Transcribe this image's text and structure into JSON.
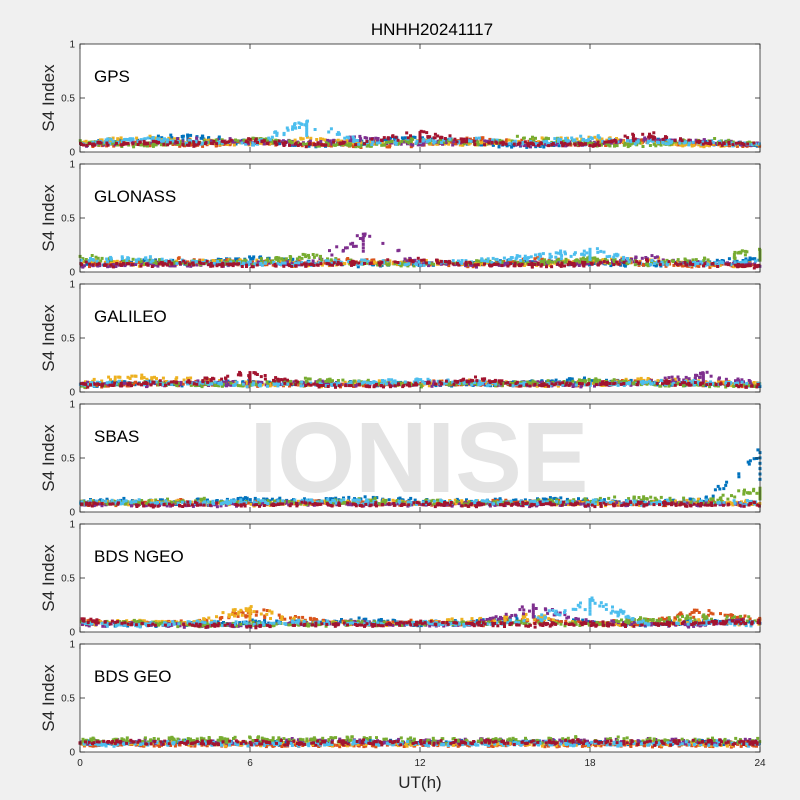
{
  "chart_data": {
    "type": "scatter",
    "title": "HNHH20241117",
    "xlabel": "UT(h)",
    "xlim": [
      0,
      24
    ],
    "xticks": [
      "0",
      "6",
      "12",
      "18",
      "24"
    ],
    "watermark": "IONISE",
    "colors": [
      "#0072BD",
      "#D95319",
      "#EDB120",
      "#7E2F8E",
      "#77AC30",
      "#4DBEEE",
      "#A2142F"
    ],
    "panels": [
      {
        "label": "GPS",
        "ylabel": "S4 Index",
        "ylim": [
          0,
          1
        ],
        "yticks": [
          "0",
          "0.5",
          "1"
        ],
        "series": [
          {
            "values": [
              0.08,
              0.12,
              0.15,
              0.09,
              0.07,
              0.1,
              0.14,
              0.08,
              0.06,
              0.09,
              0.11,
              0.1,
              0.07
            ]
          },
          {
            "values": [
              0.06,
              0.09,
              0.07,
              0.1,
              0.08,
              0.06,
              0.07,
              0.12,
              0.09,
              0.07,
              0.1,
              0.08,
              0.06
            ]
          },
          {
            "values": [
              0.09,
              0.14,
              0.11,
              0.08,
              0.12,
              0.09,
              0.1,
              0.08,
              0.11,
              0.13,
              0.09,
              0.07,
              0.08
            ]
          },
          {
            "values": [
              0.07,
              0.08,
              0.12,
              0.1,
              0.09,
              0.13,
              0.08,
              0.11,
              0.07,
              0.09,
              0.12,
              0.1,
              0.07
            ]
          },
          {
            "values": [
              0.1,
              0.07,
              0.09,
              0.13,
              0.08,
              0.07,
              0.12,
              0.09,
              0.14,
              0.08,
              0.07,
              0.11,
              0.09
            ]
          },
          {
            "values": [
              0.08,
              0.13,
              0.1,
              0.07,
              0.28,
              0.09,
              0.11,
              0.12,
              0.08,
              0.15,
              0.1,
              0.09,
              0.08
            ]
          },
          {
            "values": [
              0.07,
              0.09,
              0.08,
              0.11,
              0.07,
              0.1,
              0.18,
              0.09,
              0.08,
              0.07,
              0.17,
              0.09,
              0.07
            ]
          }
        ]
      },
      {
        "label": "GLONASS",
        "ylabel": "S4 Index",
        "ylim": [
          0,
          1
        ],
        "yticks": [
          "0",
          "0.5",
          "1"
        ],
        "series": [
          {
            "values": [
              0.09,
              0.11,
              0.08,
              0.13,
              0.1,
              0.07,
              0.09,
              0.08,
              0.11,
              0.09,
              0.07,
              0.1,
              0.12
            ]
          },
          {
            "values": [
              0.07,
              0.09,
              0.12,
              0.08,
              0.1,
              0.11,
              0.08,
              0.07,
              0.12,
              0.1,
              0.08,
              0.06,
              0.08
            ]
          },
          {
            "values": [
              0.1,
              0.08,
              0.09,
              0.11,
              0.07,
              0.09,
              0.1,
              0.08,
              0.07,
              0.11,
              0.12,
              0.08,
              0.07
            ]
          },
          {
            "values": [
              0.06,
              0.08,
              0.07,
              0.09,
              0.08,
              0.35,
              0.08,
              0.07,
              0.09,
              0.08,
              0.14,
              0.09,
              0.07
            ]
          },
          {
            "values": [
              0.14,
              0.11,
              0.09,
              0.1,
              0.16,
              0.08,
              0.07,
              0.1,
              0.09,
              0.12,
              0.09,
              0.13,
              0.2
            ]
          },
          {
            "values": [
              0.12,
              0.13,
              0.1,
              0.08,
              0.09,
              0.1,
              0.08,
              0.12,
              0.14,
              0.21,
              0.09,
              0.08,
              0.1
            ]
          },
          {
            "values": [
              0.08,
              0.07,
              0.09,
              0.06,
              0.07,
              0.09,
              0.11,
              0.08,
              0.07,
              0.08,
              0.1,
              0.07,
              0.06
            ]
          }
        ]
      },
      {
        "label": "GALILEO",
        "ylabel": "S4 Index",
        "ylim": [
          0,
          1
        ],
        "yticks": [
          "0",
          "0.5",
          "1"
        ],
        "series": [
          {
            "values": [
              0.07,
              0.09,
              0.08,
              0.1,
              0.07,
              0.09,
              0.08,
              0.07,
              0.1,
              0.12,
              0.09,
              0.08,
              0.07
            ]
          },
          {
            "values": [
              0.06,
              0.08,
              0.09,
              0.07,
              0.08,
              0.07,
              0.09,
              0.08,
              0.07,
              0.09,
              0.1,
              0.08,
              0.07
            ]
          },
          {
            "values": [
              0.09,
              0.15,
              0.12,
              0.08,
              0.07,
              0.09,
              0.08,
              0.1,
              0.07,
              0.08,
              0.12,
              0.09,
              0.08
            ]
          },
          {
            "values": [
              0.08,
              0.07,
              0.09,
              0.08,
              0.1,
              0.07,
              0.08,
              0.09,
              0.08,
              0.07,
              0.09,
              0.17,
              0.08
            ]
          },
          {
            "values": [
              0.06,
              0.09,
              0.07,
              0.08,
              0.12,
              0.1,
              0.07,
              0.08,
              0.09,
              0.11,
              0.08,
              0.07,
              0.06
            ]
          },
          {
            "values": [
              0.08,
              0.1,
              0.09,
              0.07,
              0.08,
              0.09,
              0.11,
              0.09,
              0.08,
              0.07,
              0.1,
              0.09,
              0.08
            ]
          },
          {
            "values": [
              0.07,
              0.08,
              0.1,
              0.18,
              0.07,
              0.06,
              0.08,
              0.12,
              0.07,
              0.08,
              0.09,
              0.08,
              0.06
            ]
          }
        ]
      },
      {
        "label": "SBAS",
        "ylabel": "S4 Index",
        "ylim": [
          0,
          1
        ],
        "yticks": [
          "0",
          "0.5",
          "1"
        ],
        "series": [
          {
            "values": [
              0.1,
              0.11,
              0.1,
              0.12,
              0.11,
              0.13,
              0.11,
              0.1,
              0.12,
              0.11,
              0.1,
              0.11,
              0.55
            ]
          },
          {
            "values": [
              0.08,
              0.09,
              0.1,
              0.09,
              0.1,
              0.09,
              0.08,
              0.09,
              0.1,
              0.09,
              0.08,
              0.09,
              0.08
            ]
          },
          {
            "values": [
              0.09,
              0.1,
              0.09,
              0.08,
              0.09,
              0.1,
              0.09,
              0.1,
              0.09,
              0.08,
              0.09,
              0.1,
              0.09
            ]
          },
          {
            "values": [
              0.07,
              0.08,
              0.07,
              0.08,
              0.09,
              0.08,
              0.07,
              0.08,
              0.07,
              0.08,
              0.09,
              0.08,
              0.07
            ]
          },
          {
            "values": [
              0.1,
              0.09,
              0.11,
              0.1,
              0.09,
              0.12,
              0.1,
              0.09,
              0.1,
              0.11,
              0.14,
              0.1,
              0.22
            ]
          },
          {
            "values": [
              0.09,
              0.1,
              0.09,
              0.1,
              0.11,
              0.1,
              0.09,
              0.1,
              0.09,
              0.1,
              0.09,
              0.1,
              0.09
            ]
          },
          {
            "values": [
              0.08,
              0.07,
              0.08,
              0.07,
              0.08,
              0.07,
              0.08,
              0.07,
              0.08,
              0.07,
              0.08,
              0.07,
              0.08
            ]
          }
        ]
      },
      {
        "label": "BDS NGEO",
        "ylabel": "S4 Index",
        "ylim": [
          0,
          1
        ],
        "yticks": [
          "0",
          "0.5",
          "1"
        ],
        "series": [
          {
            "values": [
              0.09,
              0.07,
              0.08,
              0.1,
              0.09,
              0.12,
              0.08,
              0.1,
              0.14,
              0.09,
              0.08,
              0.1,
              0.09
            ]
          },
          {
            "values": [
              0.11,
              0.08,
              0.09,
              0.2,
              0.12,
              0.09,
              0.1,
              0.08,
              0.12,
              0.09,
              0.1,
              0.2,
              0.12
            ]
          },
          {
            "values": [
              0.08,
              0.1,
              0.09,
              0.22,
              0.1,
              0.08,
              0.09,
              0.12,
              0.15,
              0.08,
              0.09,
              0.1,
              0.08
            ]
          },
          {
            "values": [
              0.07,
              0.08,
              0.06,
              0.07,
              0.08,
              0.09,
              0.07,
              0.08,
              0.25,
              0.1,
              0.08,
              0.07,
              0.15
            ]
          },
          {
            "values": [
              0.1,
              0.09,
              0.07,
              0.08,
              0.07,
              0.09,
              0.08,
              0.1,
              0.09,
              0.08,
              0.12,
              0.14,
              0.12
            ]
          },
          {
            "values": [
              0.08,
              0.07,
              0.09,
              0.08,
              0.1,
              0.08,
              0.09,
              0.07,
              0.12,
              0.3,
              0.08,
              0.09,
              0.08
            ]
          },
          {
            "values": [
              0.12,
              0.08,
              0.07,
              0.06,
              0.08,
              0.07,
              0.09,
              0.08,
              0.07,
              0.08,
              0.07,
              0.09,
              0.1
            ]
          }
        ]
      },
      {
        "label": "BDS GEO",
        "ylabel": "S4 Index",
        "ylim": [
          0,
          1
        ],
        "yticks": [
          "0",
          "0.5",
          "1"
        ],
        "series": [
          {
            "values": [
              0.09,
              0.09,
              0.1,
              0.09,
              0.09,
              0.1,
              0.09,
              0.09,
              0.1,
              0.09,
              0.09,
              0.1,
              0.09
            ]
          },
          {
            "values": [
              0.07,
              0.07,
              0.07,
              0.07,
              0.07,
              0.07,
              0.07,
              0.07,
              0.07,
              0.07,
              0.07,
              0.07,
              0.07
            ]
          },
          {
            "values": [
              0.08,
              0.09,
              0.08,
              0.08,
              0.09,
              0.08,
              0.08,
              0.09,
              0.08,
              0.08,
              0.09,
              0.08,
              0.08
            ]
          },
          {
            "values": [
              0.1,
              0.11,
              0.1,
              0.1,
              0.11,
              0.1,
              0.1,
              0.11,
              0.1,
              0.1,
              0.11,
              0.1,
              0.1
            ]
          },
          {
            "values": [
              0.11,
              0.12,
              0.12,
              0.13,
              0.12,
              0.13,
              0.12,
              0.11,
              0.12,
              0.13,
              0.12,
              0.12,
              0.11
            ]
          },
          {
            "values": [
              0.08,
              0.08,
              0.09,
              0.08,
              0.08,
              0.09,
              0.08,
              0.08,
              0.09,
              0.08,
              0.08,
              0.09,
              0.08
            ]
          },
          {
            "values": [
              0.09,
              0.1,
              0.09,
              0.1,
              0.09,
              0.1,
              0.09,
              0.1,
              0.09,
              0.1,
              0.09,
              0.1,
              0.09
            ]
          }
        ]
      }
    ]
  }
}
